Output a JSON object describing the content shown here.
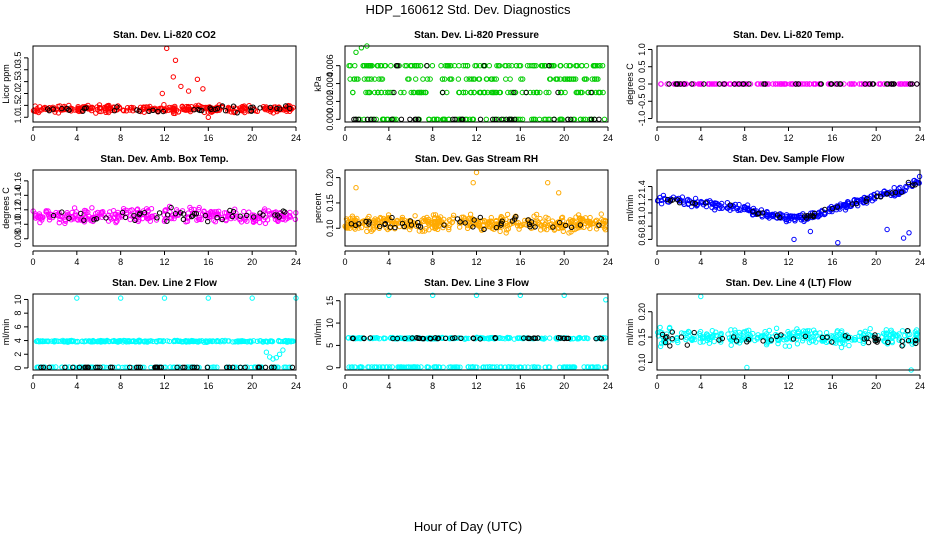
{
  "figure": {
    "title": "HDP_160612  Std. Dev. Diagnostics",
    "xlabel": "Hour of Day (UTC)"
  },
  "chart_data": [
    {
      "type": "scatter",
      "title": "Stan. Dev. Li-820 CO2",
      "ylabel": "Licor ppm",
      "xlim": [
        0,
        24
      ],
      "ylim": [
        0.8,
        4.0
      ],
      "xticks": [
        0,
        4,
        8,
        12,
        16,
        20,
        24
      ],
      "yticks": [
        1.0,
        1.5,
        2.0,
        2.5,
        3.0,
        3.5
      ],
      "ytick_labels": [
        "1.0",
        "1.5",
        "2.0",
        "2.5",
        "3.0",
        "3.5"
      ],
      "main_color": "#ff0000",
      "overlay_color": "#000000",
      "main_series": [
        {
          "x_range": [
            0,
            24
          ],
          "y_center": 1.35,
          "y_spread": 0.22,
          "n": 300
        }
      ],
      "outliers": [
        {
          "x": 12.2,
          "y": 3.9
        },
        {
          "x": 13.0,
          "y": 3.4
        },
        {
          "x": 12.8,
          "y": 2.7
        },
        {
          "x": 13.5,
          "y": 2.3
        },
        {
          "x": 14.2,
          "y": 2.1
        },
        {
          "x": 15.0,
          "y": 2.6
        },
        {
          "x": 15.5,
          "y": 2.2
        },
        {
          "x": 11.8,
          "y": 2.0
        },
        {
          "x": 16.0,
          "y": 1.0
        }
      ],
      "overlay": {
        "x_range": [
          0.5,
          23.8
        ],
        "y_center": 1.35,
        "y_spread": 0.2,
        "n": 40
      }
    },
    {
      "type": "scatter",
      "title": "Stan. Dev. Li-820 Pressure",
      "ylabel": "kPa",
      "xlim": [
        0,
        24
      ],
      "ylim": [
        -0.0003,
        0.0082
      ],
      "xticks": [
        0,
        4,
        8,
        12,
        16,
        20,
        24
      ],
      "yticks": [
        0.0,
        0.002,
        0.004,
        0.006
      ],
      "ytick_labels": [
        "0.000",
        "0.002",
        "0.004",
        "0.006"
      ],
      "main_color": "#00cc00",
      "overlay_color": "#000000",
      "main_levels": [
        {
          "y": 0.0,
          "n": 80
        },
        {
          "y": 0.003,
          "n": 90
        },
        {
          "y": 0.006,
          "n": 110
        },
        {
          "y": 0.0045,
          "n": 70
        }
      ],
      "outliers": [
        {
          "x": 1.5,
          "y": 0.008
        },
        {
          "x": 2.0,
          "y": 0.0082
        },
        {
          "x": 1.0,
          "y": 0.0075
        }
      ],
      "overlay_levels": [
        {
          "y": 0.0,
          "n": 30
        },
        {
          "y": 0.003,
          "n": 6
        },
        {
          "y": 0.006,
          "n": 5
        }
      ]
    },
    {
      "type": "scatter",
      "title": "Stan. Dev. Li-820 Temp.",
      "ylabel": "degrees C",
      "xlim": [
        0,
        24
      ],
      "ylim": [
        -1.1,
        1.1
      ],
      "xticks": [
        0,
        4,
        8,
        12,
        16,
        20,
        24
      ],
      "yticks": [
        -1.0,
        -0.5,
        0.0,
        0.5,
        1.0
      ],
      "ytick_labels": [
        "-1.0",
        "-0.5",
        "0.0",
        "0.5",
        "1.0"
      ],
      "main_color": "#ff00ff",
      "overlay_color": "#000000",
      "main_levels": [
        {
          "y": 0.0,
          "n": 140
        }
      ],
      "overlay_levels": [
        {
          "y": 0.0,
          "n": 40
        }
      ]
    },
    {
      "type": "scatter",
      "title": "Stan. Dev. Amb. Box Temp.",
      "ylabel": "degrees C",
      "xlim": [
        0,
        24
      ],
      "ylim": [
        0.07,
        0.175
      ],
      "xticks": [
        0,
        4,
        8,
        12,
        16,
        20,
        24
      ],
      "yticks": [
        0.08,
        0.1,
        0.12,
        0.14,
        0.16
      ],
      "ytick_labels": [
        "0.08",
        "0.10",
        "0.12",
        "0.14",
        "0.16"
      ],
      "main_color": "#ff00ff",
      "overlay_color": "#000000",
      "main_series": [
        {
          "x_range": [
            0,
            24
          ],
          "y_center": 0.112,
          "y_spread": 0.015,
          "n": 300
        }
      ],
      "overlay": {
        "x_range": [
          0.5,
          23.8
        ],
        "y_center": 0.112,
        "y_spread": 0.015,
        "n": 45
      }
    },
    {
      "type": "scatter",
      "title": "Stan. Dev. Gas Stream RH",
      "ylabel": "percent",
      "xlim": [
        0,
        24
      ],
      "ylim": [
        0.065,
        0.215
      ],
      "xticks": [
        0,
        4,
        8,
        12,
        16,
        20,
        24
      ],
      "yticks": [
        0.1,
        0.15,
        0.2
      ],
      "ytick_labels": [
        "0.10",
        "0.15",
        "0.20"
      ],
      "main_color": "#ffaa00",
      "overlay_color": "#000000",
      "main_series": [
        {
          "x_range": [
            0,
            24
          ],
          "y_center": 0.11,
          "y_spread": 0.022,
          "n": 420
        }
      ],
      "outliers": [
        {
          "x": 12.0,
          "y": 0.21
        },
        {
          "x": 11.7,
          "y": 0.19
        },
        {
          "x": 18.5,
          "y": 0.19
        },
        {
          "x": 1.0,
          "y": 0.18
        },
        {
          "x": 19.5,
          "y": 0.17
        }
      ],
      "overlay": {
        "x_range": [
          0.5,
          23.8
        ],
        "y_center": 0.11,
        "y_spread": 0.018,
        "n": 45
      }
    },
    {
      "type": "scatter",
      "title": "Stan. Dev. Sample Flow",
      "ylabel": "ml/min",
      "xlim": [
        0,
        24
      ],
      "ylim": [
        0.5,
        1.65
      ],
      "xticks": [
        0,
        4,
        8,
        12,
        16,
        20,
        24
      ],
      "yticks": [
        0.6,
        0.8,
        1.0,
        1.2,
        1.4
      ],
      "ytick_labels": [
        "0.6",
        "0.8",
        "1.0",
        "1.2",
        "1.4"
      ],
      "main_color": "#0000ff",
      "overlay_color": "#000000",
      "trend": [
        [
          0,
          1.2
        ],
        [
          4,
          1.15
        ],
        [
          8,
          1.05
        ],
        [
          12,
          0.92
        ],
        [
          14,
          0.95
        ],
        [
          16,
          1.05
        ],
        [
          18,
          1.15
        ],
        [
          20,
          1.25
        ],
        [
          22,
          1.32
        ],
        [
          24,
          1.5
        ]
      ],
      "trend_spread": 0.09,
      "n": 300,
      "outliers": [
        {
          "x": 12.5,
          "y": 0.6
        },
        {
          "x": 16.5,
          "y": 0.55
        },
        {
          "x": 22.5,
          "y": 0.62
        },
        {
          "x": 23.0,
          "y": 0.7
        },
        {
          "x": 21.0,
          "y": 0.75
        },
        {
          "x": 14.0,
          "y": 0.72
        }
      ],
      "overlay_n": 40
    },
    {
      "type": "scatter",
      "title": "Stan. Dev. Line 2 Flow",
      "ylabel": "ml/min",
      "xlim": [
        0,
        24
      ],
      "ylim": [
        -0.3,
        10.8
      ],
      "xticks": [
        0,
        4,
        8,
        12,
        16,
        20,
        24
      ],
      "yticks": [
        0,
        2,
        4,
        6,
        8,
        10
      ],
      "ytick_labels": [
        "0",
        "2",
        "4",
        "6",
        "8",
        "10"
      ],
      "main_color": "#00ffff",
      "overlay_color": "#000000",
      "main_levels": [
        {
          "y": 3.9,
          "n": 260,
          "spread": 0.18
        },
        {
          "y": 0.1,
          "n": 120,
          "spread": 0.05
        }
      ],
      "outliers": [
        {
          "x": 4,
          "y": 10.2
        },
        {
          "x": 8,
          "y": 10.2
        },
        {
          "x": 12,
          "y": 10.2
        },
        {
          "x": 16,
          "y": 10.2
        },
        {
          "x": 20,
          "y": 10.2
        },
        {
          "x": 24,
          "y": 10.2
        },
        {
          "x": 21.3,
          "y": 2.3
        },
        {
          "x": 21.6,
          "y": 1.6
        },
        {
          "x": 21.9,
          "y": 1.3
        },
        {
          "x": 22.2,
          "y": 1.5
        },
        {
          "x": 22.5,
          "y": 2.0
        },
        {
          "x": 22.8,
          "y": 2.6
        }
      ],
      "overlay_levels": [
        {
          "y": 0.1,
          "n": 45
        }
      ]
    },
    {
      "type": "scatter",
      "title": "Stan. Dev. Line 3 Flow",
      "ylabel": "ml/min",
      "xlim": [
        0,
        24
      ],
      "ylim": [
        -0.5,
        16.5
      ],
      "xticks": [
        0,
        4,
        8,
        12,
        16,
        20,
        24
      ],
      "yticks": [
        0,
        5,
        10,
        15
      ],
      "ytick_labels": [
        "0",
        "5",
        "10",
        "15"
      ],
      "main_color": "#00ffff",
      "overlay_color": "#000000",
      "main_levels": [
        {
          "y": 6.6,
          "n": 200,
          "spread": 0.25
        },
        {
          "y": 0.15,
          "n": 160,
          "spread": 0.08
        }
      ],
      "outliers": [
        {
          "x": 4,
          "y": 16.2
        },
        {
          "x": 8,
          "y": 16.2
        },
        {
          "x": 12,
          "y": 16.2
        },
        {
          "x": 16,
          "y": 16.2
        },
        {
          "x": 20,
          "y": 16.2
        },
        {
          "x": 23.8,
          "y": 15.2
        }
      ],
      "overlay_levels": [
        {
          "y": 6.6,
          "n": 45,
          "spread": 0.2
        }
      ]
    },
    {
      "type": "scatter",
      "title": "Stan. Dev. Line 4 (LT) Flow",
      "ylabel": "ml/min",
      "xlim": [
        0,
        24
      ],
      "ylim": [
        0.085,
        0.235
      ],
      "xticks": [
        0,
        4,
        8,
        12,
        16,
        20,
        24
      ],
      "yticks": [
        0.1,
        0.15,
        0.2
      ],
      "ytick_labels": [
        "0.10",
        "0.15",
        "0.20"
      ],
      "main_color": "#00ffff",
      "overlay_color": "#000000",
      "main_series": [
        {
          "x_range": [
            0,
            24
          ],
          "y_center": 0.15,
          "y_spread": 0.022,
          "n": 320
        }
      ],
      "outliers": [
        {
          "x": 4.0,
          "y": 0.23
        },
        {
          "x": 8.2,
          "y": 0.09
        },
        {
          "x": 23.2,
          "y": 0.085
        }
      ],
      "overlay": {
        "x_range": [
          0.5,
          23.8
        ],
        "y_center": 0.145,
        "y_spread": 0.022,
        "n": 45
      }
    }
  ]
}
